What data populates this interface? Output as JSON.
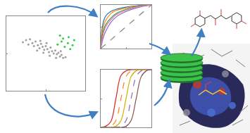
{
  "chart_data": [
    {
      "type": "scatter",
      "marker": "circle",
      "series": [
        {
          "color": "#a0a0a0",
          "x": [
            2.1,
            2.5,
            2.8,
            3.0,
            3.3,
            3.5,
            3.7,
            4.0,
            4.2,
            4.4,
            4.6,
            4.8,
            5.0,
            5.2,
            5.4,
            5.6,
            5.8,
            6.0,
            6.2,
            6.4,
            6.6,
            6.8,
            7.0,
            7.2,
            7.5,
            3.9,
            4.7,
            5.5,
            6.3,
            5.1,
            4.3,
            6.9
          ],
          "values": [
            6.5,
            6.8,
            6.2,
            6.9,
            6.4,
            6.0,
            6.6,
            6.1,
            5.7,
            6.3,
            5.9,
            5.5,
            6.0,
            5.6,
            5.2,
            5.8,
            5.3,
            5.0,
            5.4,
            4.9,
            5.1,
            4.6,
            4.8,
            4.4,
            4.5,
            5.4,
            5.1,
            4.7,
            4.4,
            6.4,
            6.7,
            5.3
          ]
        },
        {
          "color": "#2ecc40",
          "x": [
            6.5,
            7.0,
            7.4,
            7.8,
            8.1,
            8.4,
            7.2,
            7.9,
            8.6,
            6.8
          ],
          "values": [
            6.2,
            6.6,
            5.9,
            6.4,
            5.6,
            6.1,
            7.0,
            7.2,
            6.8,
            7.4
          ]
        }
      ],
      "xlim": [
        0,
        10
      ],
      "ylim": [
        0,
        10
      ],
      "xticks": [
        0,
        5,
        10
      ],
      "yticks": [
        0,
        5,
        10
      ],
      "grid": false,
      "tick_labels": false
    },
    {
      "type": "line",
      "x": [
        0,
        0.02,
        0.05,
        0.1,
        0.2,
        0.3,
        0.5,
        0.7,
        1
      ],
      "series": [
        {
          "color": "#1f77b4",
          "values": [
            0,
            0.4,
            0.6,
            0.75,
            0.85,
            0.9,
            0.95,
            0.98,
            1
          ]
        },
        {
          "color": "#ff7f0e",
          "values": [
            0,
            0.3,
            0.5,
            0.65,
            0.8,
            0.87,
            0.93,
            0.97,
            1
          ]
        },
        {
          "color": "#2ca02c",
          "values": [
            0,
            0.2,
            0.4,
            0.55,
            0.7,
            0.8,
            0.9,
            0.96,
            1
          ]
        },
        {
          "color": "#9467bd",
          "values": [
            0,
            0.1,
            0.25,
            0.4,
            0.6,
            0.72,
            0.85,
            0.93,
            1
          ]
        },
        {
          "color": "#e377c2",
          "values": [
            0,
            0.15,
            0.33,
            0.5,
            0.66,
            0.77,
            0.88,
            0.95,
            1
          ]
        },
        {
          "color": "#7f7f7f",
          "line_style": "dashed",
          "values": [
            0,
            0.02,
            0.05,
            0.1,
            0.2,
            0.3,
            0.5,
            0.7,
            1
          ]
        }
      ],
      "xlim": [
        0,
        1
      ],
      "ylim": [
        0,
        1
      ],
      "xticks": [
        0,
        0.5,
        1
      ],
      "yticks": [
        0,
        0.5,
        1
      ],
      "grid": false,
      "tick_labels": false
    },
    {
      "type": "line",
      "x": [
        0,
        1,
        2,
        3,
        4,
        5,
        6,
        7,
        8,
        9,
        10
      ],
      "series": [
        {
          "color": "#d62728",
          "values": [
            0,
            0.02,
            0.1,
            0.5,
            0.9,
            0.98,
            1,
            1,
            1,
            1,
            1
          ]
        },
        {
          "color": "#ff7f0e",
          "line_style": "dashed",
          "values": [
            0,
            0,
            0.02,
            0.12,
            0.5,
            0.88,
            0.98,
            1,
            1,
            1,
            1
          ]
        },
        {
          "color": "#d4b000",
          "values": [
            0,
            0,
            0,
            0.02,
            0.12,
            0.5,
            0.88,
            0.98,
            1,
            1,
            1
          ]
        },
        {
          "color": "#9467bd",
          "line_style": "dashed",
          "values": [
            0,
            0,
            0,
            0,
            0.02,
            0.12,
            0.5,
            0.88,
            0.98,
            1,
            1
          ]
        },
        {
          "color": "#8c564b",
          "values": [
            0,
            0,
            0,
            0,
            0,
            0.02,
            0.12,
            0.5,
            0.88,
            0.98,
            1
          ]
        }
      ],
      "xlim": [
        0,
        10
      ],
      "ylim": [
        0,
        1
      ],
      "xticks": [
        0,
        5,
        10
      ],
      "yticks": [
        0,
        0.5,
        1
      ],
      "grid": false,
      "tick_labels": false
    }
  ]
}
